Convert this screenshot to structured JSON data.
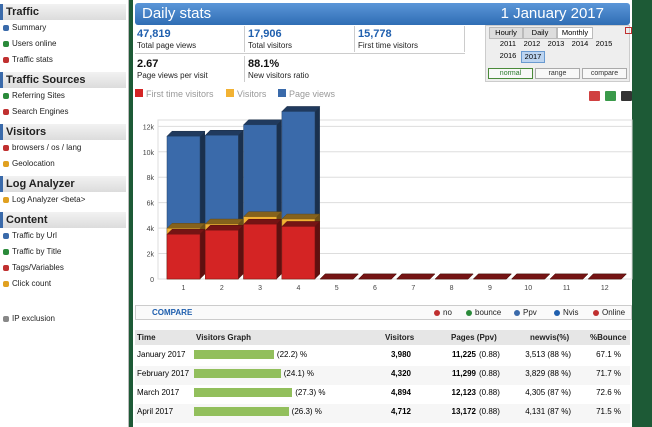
{
  "sidebar": {
    "sections": [
      {
        "title": "Traffic",
        "items": [
          "Summary",
          "Users online",
          "Traffic stats"
        ]
      },
      {
        "title": "Traffic Sources",
        "items": [
          "Referring Sites",
          "Search Engines"
        ]
      },
      {
        "title": "Visitors",
        "items": [
          "browsers / os / lang",
          "Geolocation"
        ]
      },
      {
        "title": "Log Analyzer",
        "items": [
          "Log Analyzer <beta>"
        ]
      },
      {
        "title": "Content",
        "items": [
          "Traffic by Url",
          "Traffic by Title",
          "Tags/Variables",
          "Click count"
        ]
      }
    ],
    "footer_item": "IP exclusion"
  },
  "header": {
    "title": "Daily stats",
    "date": "1 January 2017"
  },
  "stats": [
    {
      "value": "47,819",
      "label": "Total page views"
    },
    {
      "value": "17,906",
      "label": "Total visitors"
    },
    {
      "value": "15,778",
      "label": "First time visitors"
    },
    {
      "value": "2.67",
      "label": "Page views per visit"
    },
    {
      "value": "88.1%",
      "label": "New visitors ratio"
    }
  ],
  "period": {
    "tabs": [
      "Hourly",
      "Daily",
      "Monthly"
    ],
    "active_tab": 2,
    "years": [
      "2011",
      "2012",
      "2013",
      "2014",
      "2015",
      "2016",
      "2017"
    ],
    "active_year": 6,
    "modes": [
      "normal",
      "range",
      "compare"
    ],
    "active_mode": 0
  },
  "chart_data": {
    "type": "bar",
    "categories": [
      "1",
      "2",
      "3",
      "4",
      "5",
      "6",
      "7",
      "8",
      "9",
      "10",
      "11",
      "12"
    ],
    "series": [
      {
        "name": "Page views",
        "color": "#3a6aaa",
        "values": [
          11225,
          11299,
          12123,
          13172,
          0,
          0,
          0,
          0,
          0,
          0,
          0,
          0
        ]
      },
      {
        "name": "Visitors",
        "color": "#f2b233",
        "values": [
          3980,
          4320,
          4894,
          4712,
          0,
          0,
          0,
          0,
          0,
          0,
          0,
          0
        ]
      },
      {
        "name": "First time visitors",
        "color": "#d42424",
        "values": [
          3513,
          3829,
          4305,
          4131,
          0,
          0,
          0,
          0,
          0,
          0,
          0,
          0
        ]
      }
    ],
    "ylim": [
      0,
      12500
    ],
    "yticks": [
      {
        "value": 0,
        "label": "0"
      },
      {
        "value": 2000,
        "label": "2k"
      },
      {
        "value": 4000,
        "label": "4k"
      },
      {
        "value": 6000,
        "label": "6k"
      },
      {
        "value": 8000,
        "label": "8k"
      },
      {
        "value": 10000,
        "label": "10k"
      },
      {
        "value": 12000,
        "label": "12k"
      }
    ],
    "grid": true,
    "legend_order": [
      2,
      1,
      0
    ]
  },
  "compare": {
    "title": "COMPARE",
    "options": [
      "no",
      "bounce",
      "Ppv",
      "Nvis",
      "Online"
    ]
  },
  "table": {
    "columns": [
      "Time",
      "Visitors Graph",
      "Visitors",
      "Pages (Ppv)",
      "newvis(%)",
      "%Bounce"
    ],
    "rows": [
      {
        "time": "January 2017",
        "graph_value": 22.2,
        "graph_label": "(22.2) %",
        "visitors": "3,980",
        "pages": "11,225",
        "ppv": "(0.88)",
        "newvis": "3,513 (88 %)",
        "bounce": "67.1 %"
      },
      {
        "time": "February 2017",
        "graph_value": 24.1,
        "graph_label": "(24.1) %",
        "visitors": "4,320",
        "pages": "11,299",
        "ppv": "(0.88)",
        "newvis": "3,829 (88 %)",
        "bounce": "71.7 %"
      },
      {
        "time": "March 2017",
        "graph_value": 27.3,
        "graph_label": "(27.3) %",
        "visitors": "4,894",
        "pages": "12,123",
        "ppv": "(0.88)",
        "newvis": "4,305 (87 %)",
        "bounce": "72.6 %"
      },
      {
        "time": "April 2017",
        "graph_value": 26.3,
        "graph_label": "(26.3) %",
        "visitors": "4,712",
        "pages": "13,172",
        "ppv": "(0.88)",
        "newvis": "4,131 (87 %)",
        "bounce": "71.5 %"
      }
    ]
  }
}
